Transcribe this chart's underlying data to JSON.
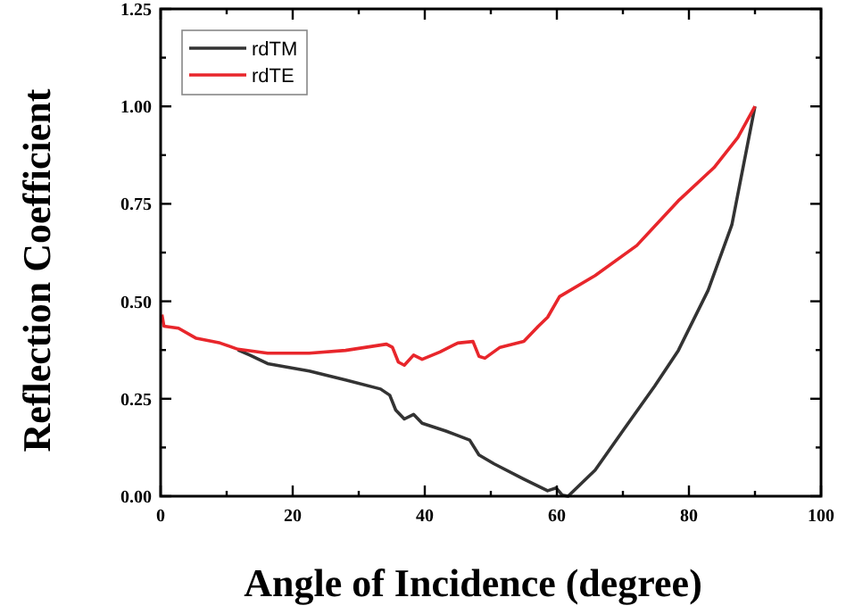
{
  "chart_data": {
    "type": "line",
    "xlabel": "Angle of Incidence (degree)",
    "ylabel": "Reflection Coefficient",
    "xlim": [
      0,
      100
    ],
    "ylim": [
      0,
      1.25
    ],
    "xticks": [
      0,
      {
        "value": 10,
        "label": null
      },
      20,
      {
        "value": 30,
        "label": null
      },
      40,
      {
        "value": 50,
        "label": null
      },
      60,
      {
        "value": 70,
        "label": null
      },
      80,
      {
        "value": 90,
        "label": null
      },
      100
    ],
    "yticks": [
      "0.00",
      {
        "value": 0.125,
        "label": null
      },
      {
        "value": 0.25,
        "label": "0.25"
      },
      {
        "value": 0.375,
        "label": null
      },
      {
        "value": 0.5,
        "label": "0.50"
      },
      {
        "value": 0.625,
        "label": null
      },
      {
        "value": 0.75,
        "label": "0.75"
      },
      {
        "value": 0.875,
        "label": null
      },
      {
        "value": 1,
        "label": "1.00"
      },
      {
        "value": 1.125,
        "label": null
      },
      {
        "value": 1.25,
        "label": "1.25"
      }
    ],
    "legend": "top left",
    "grid": false,
    "marker": "none",
    "line_style": "solid",
    "series": [
      {
        "name": "rdTM",
        "color": "#333333",
        "x": [
          11.7,
          13.5,
          16.2,
          22.5,
          28,
          33.3,
          34.7,
          35.6,
          36.9,
          38.3,
          39.6,
          43.2,
          46.8,
          48.2,
          50.5,
          55,
          58.6,
          59.9,
          60.8,
          61.7,
          65.8,
          70.3,
          74.8,
          78.4,
          82.9,
          86.5,
          90
        ],
        "values": [
          0.375,
          0.362,
          0.34,
          0.321,
          0.298,
          0.275,
          0.259,
          0.221,
          0.198,
          0.21,
          0.187,
          0.167,
          0.144,
          0.106,
          0.083,
          0.044,
          0.014,
          0.021,
          0.003,
          0,
          0.067,
          0.175,
          0.282,
          0.374,
          0.528,
          0.696,
          1.0
        ]
      },
      {
        "name": "rdTE",
        "color": "#e8262b",
        "x": [
          0.2,
          0.5,
          2.7,
          5.4,
          9,
          11.7,
          16.2,
          22.5,
          28,
          34.2,
          35.1,
          36,
          36.9,
          38.3,
          39.6,
          42.3,
          45,
          47.3,
          48.2,
          49.1,
          51.4,
          55,
          57.2,
          58.6,
          60.4,
          65.8,
          72.1,
          78.4,
          83.8,
          87.4,
          90
        ],
        "values": [
          0.466,
          0.436,
          0.431,
          0.405,
          0.393,
          0.377,
          0.367,
          0.367,
          0.374,
          0.39,
          0.382,
          0.344,
          0.336,
          0.362,
          0.351,
          0.37,
          0.393,
          0.397,
          0.359,
          0.354,
          0.382,
          0.397,
          0.436,
          0.459,
          0.512,
          0.566,
          0.643,
          0.758,
          0.843,
          0.92,
          1.0
        ]
      }
    ]
  }
}
